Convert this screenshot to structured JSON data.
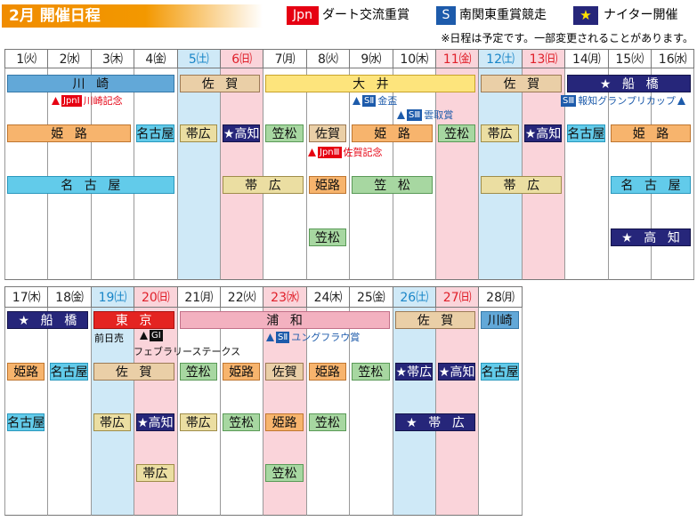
{
  "header": {
    "title": "2月 開催日程",
    "legend": [
      {
        "badge": "Jpn",
        "label": "ダート交流重賞"
      },
      {
        "badge": "S",
        "label": "南関東重賞競走"
      },
      {
        "badge": "★",
        "label": "ナイター開催"
      }
    ],
    "note": "※日程は予定です。一部変更されることがあります。"
  },
  "weeks": [
    {
      "days": [
        "1㈫",
        "2㈬",
        "3㈭",
        "4㈮",
        "5㈯",
        "6㈰",
        "7㈪",
        "8㈫",
        "9㈬",
        "10㈭",
        "11㈮",
        "12㈯",
        "13㈰",
        "14㈪",
        "15㈫",
        "16㈬"
      ],
      "events": [
        "川崎",
        "佐賀",
        "大井",
        "佐賀",
        "★船橋",
        "姫路",
        "名古屋",
        "帯広",
        "★高知",
        "笠松",
        "佐賀",
        "姫路",
        "笠松",
        "帯広",
        "★高知",
        "名古屋",
        "姫路",
        "名古屋",
        "帯広",
        "姫路",
        "笠松",
        "帯広",
        "名古屋",
        "笠松",
        "★高知"
      ],
      "races": [
        {
          "grade": "JpnⅠ",
          "name": "川崎記念"
        },
        {
          "grade": "SⅡ",
          "name": "金盃"
        },
        {
          "grade": "SⅢ",
          "name": "雲取賞"
        },
        {
          "grade": "SⅢ",
          "name": "報知グランプリカップ"
        },
        {
          "grade": "JpnⅢ",
          "name": "佐賀記念"
        }
      ]
    },
    {
      "days": [
        "17㈭",
        "18㈮",
        "19㈯",
        "20㈰",
        "21㈪",
        "22㈫",
        "23㈬",
        "24㈭",
        "25㈮",
        "26㈯",
        "27㈰",
        "28㈪"
      ],
      "events": [
        "★船橋",
        "東京",
        "浦和",
        "佐賀",
        "川崎",
        "姫路",
        "名古屋",
        "佐賀",
        "笠松",
        "姫路",
        "佐賀",
        "姫路",
        "笠松",
        "★帯広",
        "★高知",
        "名古屋",
        "名古屋",
        "帯広",
        "★高知",
        "帯広",
        "笠松",
        "姫路",
        "笠松",
        "★帯広",
        "帯広",
        "笠松"
      ],
      "extra": "前日売",
      "races": [
        {
          "grade": "GⅠ",
          "name": "フェブラリーステークス"
        },
        {
          "grade": "SⅡ",
          "name": "ユングフラウ賞"
        }
      ]
    }
  ]
}
